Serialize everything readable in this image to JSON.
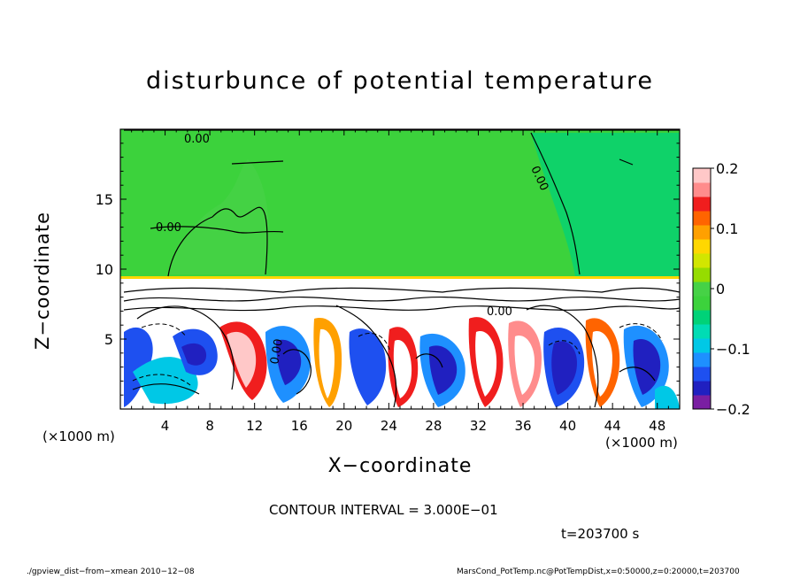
{
  "chart_data": {
    "type": "heatmap",
    "title": "disturbunce of potential temperature",
    "xlabel": "X−coordinate",
    "ylabel": "Z−coordinate",
    "x_unit": "(×1000 m)",
    "x_ticks": [
      4,
      8,
      12,
      16,
      20,
      24,
      28,
      32,
      36,
      40,
      44,
      48
    ],
    "y_ticks": [
      5,
      10,
      15
    ],
    "xlim": [
      0,
      50
    ],
    "ylim": [
      0,
      20
    ],
    "colorbar": {
      "min": -0.2,
      "max": 0.2,
      "ticks": [
        "0.2",
        "0.1",
        "0",
        "−0.1",
        "−0.2"
      ],
      "colors": [
        "#7a1fa2",
        "#2020c0",
        "#1e50f0",
        "#1e90ff",
        "#00c8e6",
        "#00dcb4",
        "#00d278",
        "#3cd23c",
        "#46d246",
        "#96dc00",
        "#d2e600",
        "#ffd700",
        "#ffa000",
        "#ff6400",
        "#f01e1e",
        "#ff8c8c",
        "#ffc8c8"
      ]
    },
    "contour_labels": [
      "0.00",
      "0.00",
      "0.00",
      "0.00",
      "0.00"
    ],
    "contour_interval_text": "CONTOUR INTERVAL = 3.000E−01",
    "time_text": "t=203700 s"
  },
  "footer": {
    "left": "./gpview_dist−from−xmean  2010−12−08",
    "right": "MarsCond_PotTemp.nc@PotTempDist,x=0:50000,z=0:20000,t=203700"
  }
}
